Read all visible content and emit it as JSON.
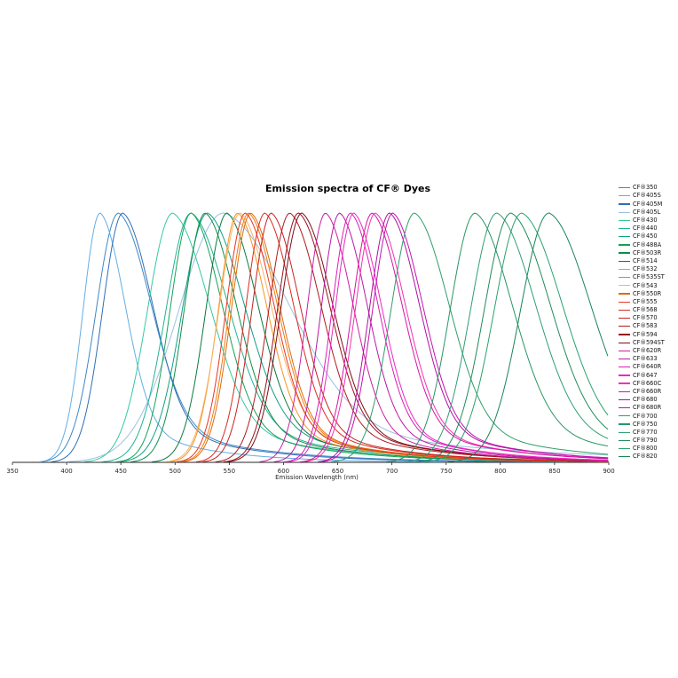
{
  "chart_data": {
    "type": "line",
    "title": "Emission spectra of CF® Dyes",
    "xlabel": "Emission Wavelength (nm)",
    "xlim": [
      350,
      900
    ],
    "xticks": [
      350,
      400,
      450,
      500,
      550,
      600,
      650,
      700,
      750,
      800,
      850,
      900
    ],
    "ylim": [
      0,
      1
    ],
    "grid": false,
    "legend_position": "right",
    "normalized": true,
    "colors": {
      "background": "#ffffff",
      "axis": "#262626"
    },
    "series": [
      {
        "name": "CF®350",
        "color": "#3f87c5",
        "peak_nm": 448,
        "fwhm_nm": 55
      },
      {
        "name": "CF®405S",
        "color": "#64aee3",
        "peak_nm": 431,
        "fwhm_nm": 42
      },
      {
        "name": "CF®405M",
        "color": "#2f6fb5",
        "peak_nm": 452,
        "fwhm_nm": 50
      },
      {
        "name": "CF®405L",
        "color": "#9cc0e0",
        "peak_nm": 545,
        "fwhm_nm": 110
      },
      {
        "name": "CF®430",
        "color": "#34c9a3",
        "peak_nm": 498,
        "fwhm_nm": 62
      },
      {
        "name": "CF®440",
        "color": "#1fb493",
        "peak_nm": 515,
        "fwhm_nm": 62
      },
      {
        "name": "CF®450",
        "color": "#0fa186",
        "peak_nm": 530,
        "fwhm_nm": 62
      },
      {
        "name": "CF®488A",
        "color": "#14a257",
        "peak_nm": 515,
        "fwhm_nm": 52
      },
      {
        "name": "CF®503R",
        "color": "#0e8f4b",
        "peak_nm": 528,
        "fwhm_nm": 52
      },
      {
        "name": "CF®514",
        "color": "#0a7b40",
        "peak_nm": 548,
        "fwhm_nm": 52
      },
      {
        "name": "CF®532",
        "color": "#f79420",
        "peak_nm": 558,
        "fwhm_nm": 48
      },
      {
        "name": "CF®535ST",
        "color": "#ee7e14",
        "peak_nm": 568,
        "fwhm_nm": 48
      },
      {
        "name": "CF®543",
        "color": "#f7b264",
        "peak_nm": 560,
        "fwhm_nm": 52
      },
      {
        "name": "CF®550R",
        "color": "#dd6b0c",
        "peak_nm": 570,
        "fwhm_nm": 48
      },
      {
        "name": "CF®555",
        "color": "#ea3425",
        "peak_nm": 565,
        "fwhm_nm": 48
      },
      {
        "name": "CF®568",
        "color": "#da2a1f",
        "peak_nm": 583,
        "fwhm_nm": 48
      },
      {
        "name": "CF®570",
        "color": "#c92121",
        "peak_nm": 589,
        "fwhm_nm": 48
      },
      {
        "name": "CF®583",
        "color": "#b01a1f",
        "peak_nm": 606,
        "fwhm_nm": 52
      },
      {
        "name": "CF®594",
        "color": "#97121d",
        "peak_nm": 614,
        "fwhm_nm": 52
      },
      {
        "name": "CF®594ST",
        "color": "#7f0d19",
        "peak_nm": 617,
        "fwhm_nm": 52
      },
      {
        "name": "CF®620R",
        "color": "#cb209f",
        "peak_nm": 639,
        "fwhm_nm": 46
      },
      {
        "name": "CF®633",
        "color": "#ba18a7",
        "peak_nm": 652,
        "fwhm_nm": 46
      },
      {
        "name": "CF®640R",
        "color": "#da1eb4",
        "peak_nm": 662,
        "fwhm_nm": 46
      },
      {
        "name": "CF®647",
        "color": "#ea2ac1",
        "peak_nm": 665,
        "fwhm_nm": 46
      },
      {
        "name": "CF®660C",
        "color": "#f133af",
        "peak_nm": 685,
        "fwhm_nm": 50
      },
      {
        "name": "CF®660R",
        "color": "#d615a5",
        "peak_nm": 682,
        "fwhm_nm": 50
      },
      {
        "name": "CF®680",
        "color": "#ae11a0",
        "peak_nm": 698,
        "fwhm_nm": 50
      },
      {
        "name": "CF®680R",
        "color": "#c513af",
        "peak_nm": 701,
        "fwhm_nm": 50
      },
      {
        "name": "CF®700",
        "color": "#2f9e6b",
        "peak_nm": 721,
        "fwhm_nm": 58
      },
      {
        "name": "CF®750",
        "color": "#289565",
        "peak_nm": 777,
        "fwhm_nm": 62
      },
      {
        "name": "CF®770",
        "color": "#2f9f73",
        "peak_nm": 797,
        "fwhm_nm": 65
      },
      {
        "name": "CF®790",
        "color": "#208b5d",
        "peak_nm": 810,
        "fwhm_nm": 66
      },
      {
        "name": "CF®800",
        "color": "#2aa16f",
        "peak_nm": 820,
        "fwhm_nm": 68
      },
      {
        "name": "CF®820",
        "color": "#188559",
        "peak_nm": 845,
        "fwhm_nm": 70
      }
    ]
  }
}
